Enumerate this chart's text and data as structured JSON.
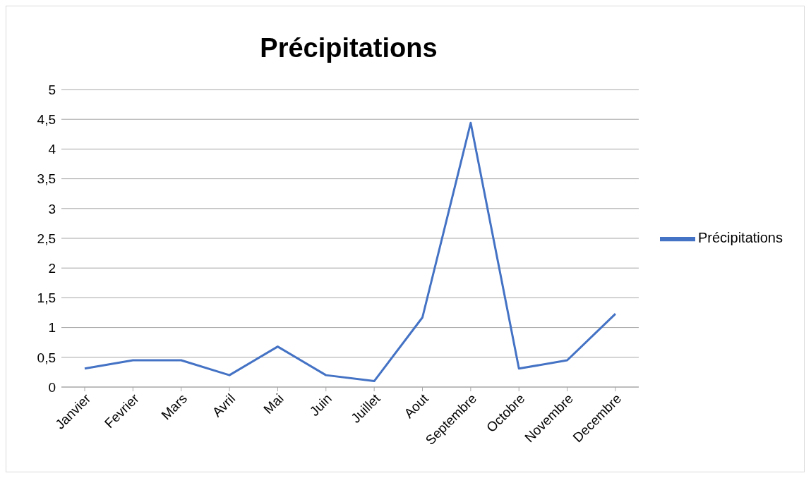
{
  "chart_data": {
    "type": "line",
    "title": "Précipitations",
    "categories": [
      "Janvier",
      "Fevrier",
      "Mars",
      "Avril",
      "Mai",
      "Juin",
      "Juillet",
      "Aout",
      "Septembre",
      "Octobre",
      "Novembre",
      "Decembre"
    ],
    "series": [
      {
        "name": "Précipitations",
        "color": "#4472c4",
        "values": [
          0.31,
          0.45,
          0.45,
          0.2,
          0.68,
          0.2,
          0.1,
          1.17,
          4.44,
          0.31,
          0.45,
          1.23
        ]
      }
    ],
    "ylim": [
      0,
      5
    ],
    "yticks": [
      0,
      {
        "value": 0.5,
        "label": "0,5"
      },
      1,
      {
        "value": 1.5,
        "label": "1,5"
      },
      2,
      {
        "value": 2.5,
        "label": "2,5"
      },
      3,
      {
        "value": 3.5,
        "label": "3,5"
      },
      4,
      {
        "value": 4.5,
        "label": "4,5"
      },
      5
    ],
    "grid": "y",
    "legend": "right",
    "marker": "none",
    "line_style": "solid"
  }
}
